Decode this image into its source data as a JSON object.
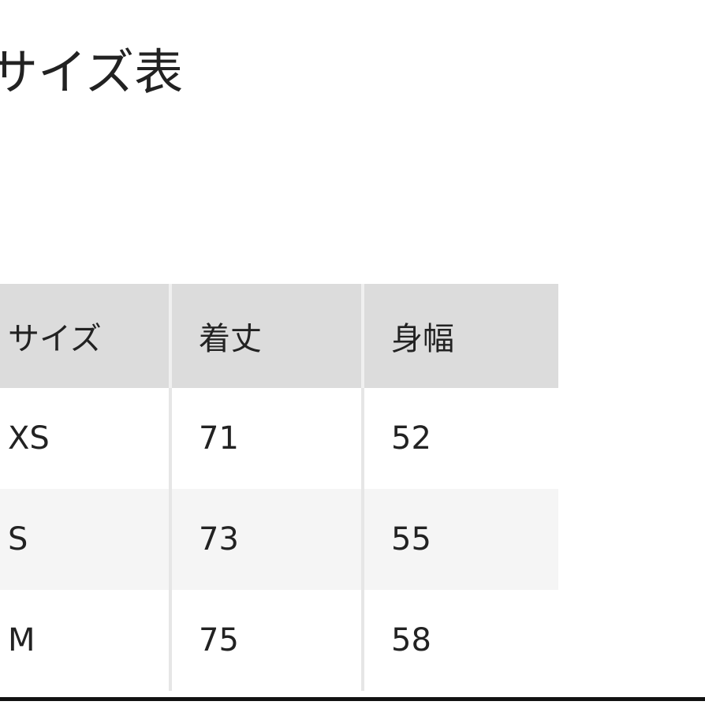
{
  "title": "サイズ表",
  "table": {
    "headers": [
      "サイズ",
      "着丈",
      "身幅"
    ],
    "rows": [
      [
        "XS",
        "71",
        "52"
      ],
      [
        "S",
        "73",
        "55"
      ],
      [
        "M",
        "75",
        "58"
      ]
    ]
  },
  "colors": {
    "header_bg": "#dcdcdc",
    "alt_row_bg": "#f5f5f5",
    "text": "#222222"
  }
}
